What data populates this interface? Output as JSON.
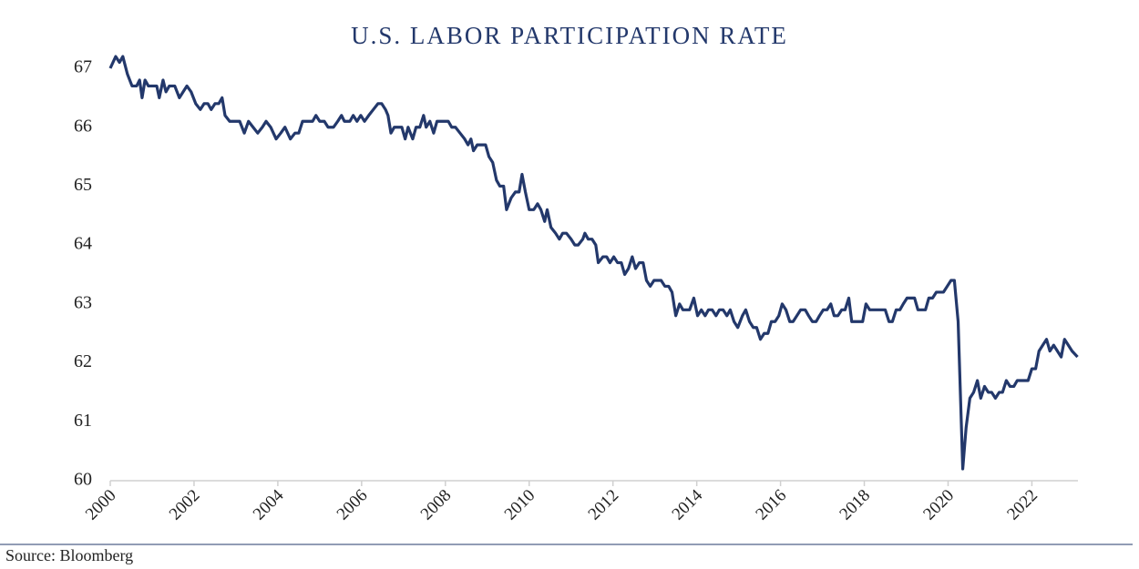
{
  "chart_data": {
    "type": "line",
    "title": "U.S. LABOR PARTICIPATION RATE",
    "source": "Source: Bloomberg",
    "xlim": [
      2000,
      2023.1
    ],
    "xticks": [
      2000,
      2002,
      2004,
      2006,
      2008,
      2010,
      2012,
      2014,
      2016,
      2018,
      2020,
      2022
    ],
    "ylim": [
      60,
      67
    ],
    "yticks": [
      60,
      61,
      62,
      63,
      64,
      65,
      66,
      67
    ],
    "grid": false,
    "x": [
      2000.0,
      2000.13,
      2000.22,
      2000.3,
      2000.41,
      2000.52,
      2000.63,
      2000.7,
      2000.76,
      2000.83,
      2000.91,
      2001.11,
      2001.17,
      2001.26,
      2001.33,
      2001.41,
      2001.54,
      2001.65,
      2001.83,
      2001.93,
      2002.04,
      2002.15,
      2002.24,
      2002.33,
      2002.41,
      2002.5,
      2002.59,
      2002.67,
      2002.74,
      2002.85,
      2003.09,
      2003.2,
      2003.3,
      2003.41,
      2003.52,
      2003.63,
      2003.72,
      2003.83,
      2003.96,
      2004.07,
      2004.17,
      2004.3,
      2004.41,
      2004.5,
      2004.59,
      2004.83,
      2004.91,
      2005.0,
      2005.11,
      2005.2,
      2005.33,
      2005.43,
      2005.52,
      2005.59,
      2005.72,
      2005.8,
      2005.89,
      2005.98,
      2006.07,
      2006.17,
      2006.28,
      2006.39,
      2006.48,
      2006.57,
      2006.63,
      2006.7,
      2006.78,
      2006.96,
      2007.04,
      2007.11,
      2007.22,
      2007.3,
      2007.39,
      2007.48,
      2007.54,
      2007.63,
      2007.72,
      2007.8,
      2008.07,
      2008.15,
      2008.24,
      2008.35,
      2008.46,
      2008.54,
      2008.61,
      2008.67,
      2008.76,
      2008.96,
      2009.04,
      2009.13,
      2009.22,
      2009.3,
      2009.39,
      2009.46,
      2009.57,
      2009.67,
      2009.76,
      2009.83,
      2009.91,
      2010.0,
      2010.11,
      2010.2,
      2010.28,
      2010.37,
      2010.43,
      2010.52,
      2010.63,
      2010.72,
      2010.8,
      2010.89,
      2011.0,
      2011.09,
      2011.17,
      2011.28,
      2011.33,
      2011.41,
      2011.5,
      2011.59,
      2011.65,
      2011.76,
      2011.85,
      2011.93,
      2012.02,
      2012.11,
      2012.2,
      2012.28,
      2012.37,
      2012.46,
      2012.54,
      2012.63,
      2012.72,
      2012.8,
      2012.89,
      2012.98,
      2013.15,
      2013.24,
      2013.33,
      2013.41,
      2013.5,
      2013.59,
      2013.67,
      2013.83,
      2013.93,
      2014.02,
      2014.11,
      2014.2,
      2014.28,
      2014.37,
      2014.46,
      2014.54,
      2014.63,
      2014.72,
      2014.8,
      2014.89,
      2014.98,
      2015.09,
      2015.17,
      2015.26,
      2015.35,
      2015.43,
      2015.52,
      2015.61,
      2015.7,
      2015.78,
      2015.87,
      2015.96,
      2016.04,
      2016.13,
      2016.22,
      2016.3,
      2016.39,
      2016.48,
      2016.59,
      2016.67,
      2016.76,
      2016.85,
      2016.93,
      2017.02,
      2017.11,
      2017.2,
      2017.28,
      2017.37,
      2017.46,
      2017.54,
      2017.63,
      2017.7,
      2017.96,
      2018.04,
      2018.13,
      2018.5,
      2018.59,
      2018.67,
      2018.76,
      2018.85,
      2018.93,
      2019.02,
      2019.2,
      2019.28,
      2019.46,
      2019.54,
      2019.63,
      2019.72,
      2019.89,
      2019.98,
      2020.07,
      2020.15,
      2020.24,
      2020.35,
      2020.43,
      2020.52,
      2020.61,
      2020.7,
      2020.78,
      2020.87,
      2020.96,
      2021.04,
      2021.13,
      2021.22,
      2021.3,
      2021.39,
      2021.48,
      2021.57,
      2021.65,
      2021.91,
      2022.0,
      2022.09,
      2022.17,
      2022.26,
      2022.35,
      2022.43,
      2022.52,
      2022.61,
      2022.7,
      2022.78,
      2022.87,
      2022.96,
      2023.09
    ],
    "series": [
      {
        "name": "Labor participation rate",
        "color": "#23386b",
        "values": [
          67.0,
          67.2,
          67.1,
          67.2,
          66.9,
          66.7,
          66.7,
          66.8,
          66.5,
          66.8,
          66.7,
          66.7,
          66.5,
          66.8,
          66.6,
          66.7,
          66.7,
          66.5,
          66.7,
          66.6,
          66.4,
          66.3,
          66.4,
          66.4,
          66.3,
          66.4,
          66.4,
          66.5,
          66.2,
          66.1,
          66.1,
          65.9,
          66.1,
          66.0,
          65.9,
          66.0,
          66.1,
          66.0,
          65.8,
          65.9,
          66.0,
          65.8,
          65.9,
          65.9,
          66.1,
          66.1,
          66.2,
          66.1,
          66.1,
          66.0,
          66.0,
          66.1,
          66.2,
          66.1,
          66.1,
          66.2,
          66.1,
          66.2,
          66.1,
          66.2,
          66.3,
          66.4,
          66.4,
          66.3,
          66.2,
          65.9,
          66.0,
          66.0,
          65.8,
          66.0,
          65.8,
          66.0,
          66.0,
          66.2,
          66.0,
          66.1,
          65.9,
          66.1,
          66.1,
          66.0,
          66.0,
          65.9,
          65.8,
          65.7,
          65.8,
          65.6,
          65.7,
          65.7,
          65.5,
          65.4,
          65.1,
          65.0,
          65.0,
          64.6,
          64.8,
          64.9,
          64.9,
          65.2,
          64.9,
          64.6,
          64.6,
          64.7,
          64.6,
          64.4,
          64.6,
          64.3,
          64.2,
          64.1,
          64.2,
          64.2,
          64.1,
          64.0,
          64.0,
          64.1,
          64.2,
          64.1,
          64.1,
          64.0,
          63.7,
          63.8,
          63.8,
          63.7,
          63.8,
          63.7,
          63.7,
          63.5,
          63.6,
          63.8,
          63.6,
          63.7,
          63.7,
          63.4,
          63.3,
          63.4,
          63.4,
          63.3,
          63.3,
          63.2,
          62.8,
          63.0,
          62.9,
          62.9,
          63.1,
          62.8,
          62.9,
          62.8,
          62.9,
          62.9,
          62.8,
          62.9,
          62.9,
          62.8,
          62.9,
          62.7,
          62.6,
          62.8,
          62.9,
          62.7,
          62.6,
          62.6,
          62.4,
          62.5,
          62.5,
          62.7,
          62.7,
          62.8,
          63.0,
          62.9,
          62.7,
          62.7,
          62.8,
          62.9,
          62.9,
          62.8,
          62.7,
          62.7,
          62.8,
          62.9,
          62.9,
          63.0,
          62.8,
          62.8,
          62.9,
          62.9,
          63.1,
          62.7,
          62.7,
          63.0,
          62.9,
          62.9,
          62.7,
          62.7,
          62.9,
          62.9,
          63.0,
          63.1,
          63.1,
          62.9,
          62.9,
          63.1,
          63.1,
          63.2,
          63.2,
          63.3,
          63.4,
          63.4,
          62.7,
          60.2,
          60.9,
          61.4,
          61.5,
          61.7,
          61.4,
          61.6,
          61.5,
          61.5,
          61.4,
          61.5,
          61.5,
          61.7,
          61.6,
          61.6,
          61.7,
          61.7,
          61.9,
          61.9,
          62.2,
          62.3,
          62.4,
          62.2,
          62.3,
          62.2,
          62.1,
          62.4,
          62.3,
          62.2,
          62.1
        ]
      }
    ]
  }
}
